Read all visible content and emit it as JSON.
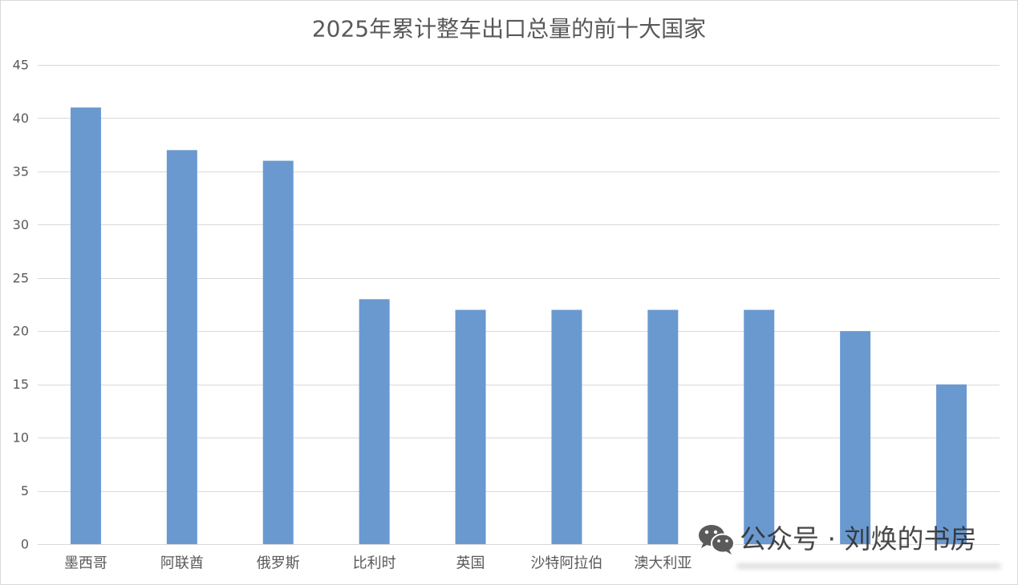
{
  "chart_data": {
    "type": "bar",
    "title": "2025年累计整车出口总量的前十大国家",
    "categories": [
      "墨西哥",
      "阿联酋",
      "俄罗斯",
      "比利时",
      "英国",
      "沙特阿拉伯",
      "澳大利亚",
      "",
      "",
      ""
    ],
    "values": [
      41,
      37,
      36,
      23,
      22,
      22,
      22,
      22,
      20,
      15
    ],
    "ylim": [
      0,
      45
    ],
    "yticks": [
      0,
      5,
      10,
      15,
      20,
      25,
      30,
      35,
      40,
      45
    ],
    "grid": true,
    "legend": "none"
  },
  "colors": {
    "bar": "#6A99D0",
    "gridline": "#D9D9D9",
    "text": "#595959"
  },
  "watermark": {
    "icon": "wechat-icon",
    "text": "公众号 · 刘焕的书房"
  }
}
